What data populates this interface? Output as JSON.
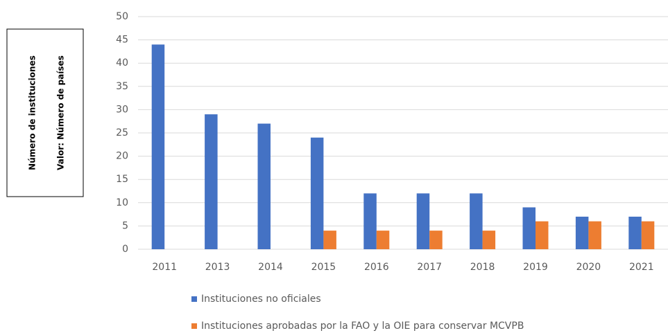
{
  "chart_data": {
    "type": "bar",
    "ylabel_lines": [
      "Número de instituciones",
      "Valor: Número de países"
    ],
    "categories": [
      "2011",
      "2013",
      "2014",
      "2015",
      "2016",
      "2017",
      "2018",
      "2019",
      "2020",
      "2021"
    ],
    "series": [
      {
        "name": "Instituciones no oficiales",
        "color": "#4472c4",
        "values": [
          44,
          29,
          27,
          24,
          12,
          12,
          12,
          9,
          7,
          7
        ]
      },
      {
        "name": "Instituciones aprobadas por la FAO y la OIE para conservar MCVPB",
        "color": "#ed7d31",
        "values": [
          null,
          null,
          null,
          4,
          4,
          4,
          4,
          6,
          6,
          6
        ]
      }
    ],
    "ylim": [
      0,
      50
    ],
    "yticks": [
      0,
      5,
      10,
      15,
      20,
      25,
      30,
      35,
      40,
      45,
      50
    ],
    "grid": true,
    "legend": "bottom"
  }
}
